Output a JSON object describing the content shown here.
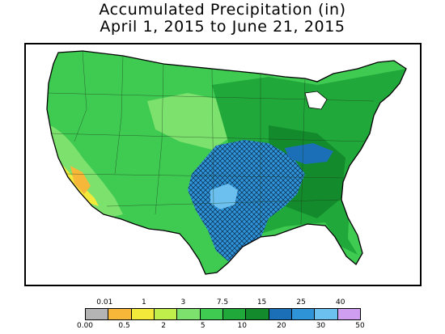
{
  "title": {
    "line1": "Accumulated Precipitation (in)",
    "line2": "April 1, 2015 to June 21, 2015"
  },
  "legend": {
    "top_labels": [
      "0.01",
      "1",
      "3",
      "7.5",
      "15",
      "25",
      "40"
    ],
    "bottom_labels": [
      "0.00",
      "0.5",
      "2",
      "5",
      "10",
      "20",
      "30",
      "50"
    ],
    "colors": [
      "#b4b4b4",
      "#f7b739",
      "#f3e93a",
      "#c0ee4a",
      "#7de16d",
      "#3fcb52",
      "#20a83a",
      "#138a2c",
      "#1a6fb7",
      "#2f93d8",
      "#6cc0ef",
      "#cf9ef0"
    ]
  },
  "map": {
    "region": "United States",
    "colors": {
      "light_green": "#7de16d",
      "green": "#3fcb52",
      "dark_green": "#20a83a",
      "darkest_green": "#138a2c",
      "blue": "#2f93d8",
      "dark_blue": "#1a6fb7",
      "light_blue": "#6cc0ef",
      "yellow": "#f3e93a",
      "orange": "#f7b739",
      "border": "#000000"
    }
  }
}
